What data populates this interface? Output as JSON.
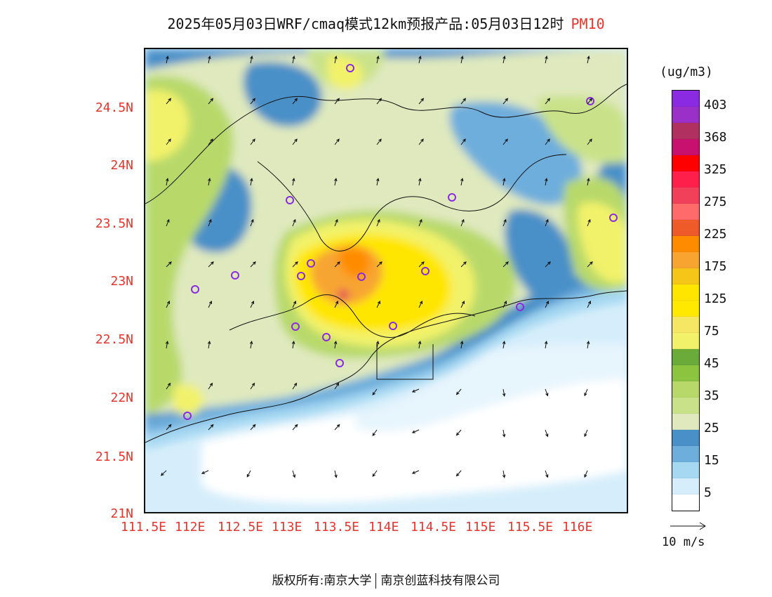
{
  "title": {
    "main": "2025年05月03日WRF/cmaq模式12km预报产品:05月03日12时",
    "species": "PM10"
  },
  "axes": {
    "y_ticks": [
      "24.5N",
      "24N",
      "23.5N",
      "23N",
      "22.5N",
      "22N",
      "21.5N",
      "21N"
    ],
    "x_ticks": [
      "111.5E",
      "112E",
      "112.5E",
      "113E",
      "113.5E",
      "114E",
      "114.5E",
      "115E",
      "115.5E",
      "116E"
    ]
  },
  "legend": {
    "unit": "(ug/m3)",
    "labels": [
      "403",
      "368",
      "325",
      "275",
      "225",
      "175",
      "125",
      "75",
      "45",
      "35",
      "25",
      "15",
      "5"
    ],
    "colors": [
      "#8a2be2",
      "#9b30c8",
      "#b03060",
      "#c8106e",
      "#ff0000",
      "#ff1f4b",
      "#f0405a",
      "#ff6a6a",
      "#ee5a28",
      "#ff8c00",
      "#f7a530",
      "#f5c518",
      "#ffe600",
      "#ffe900",
      "#f5e663",
      "#f2f26a",
      "#6aab3a",
      "#8cc43f",
      "#b8d96a",
      "#c9e28a",
      "#dfe9bd",
      "#4a90c8",
      "#6eaedc",
      "#a6d8f2",
      "#d6eefb",
      "#ffffff"
    ]
  },
  "wind_reference": "10 m/s",
  "footer": {
    "left": "版权所有:南京大学",
    "right": "南京创蓝科技有限公司"
  }
}
